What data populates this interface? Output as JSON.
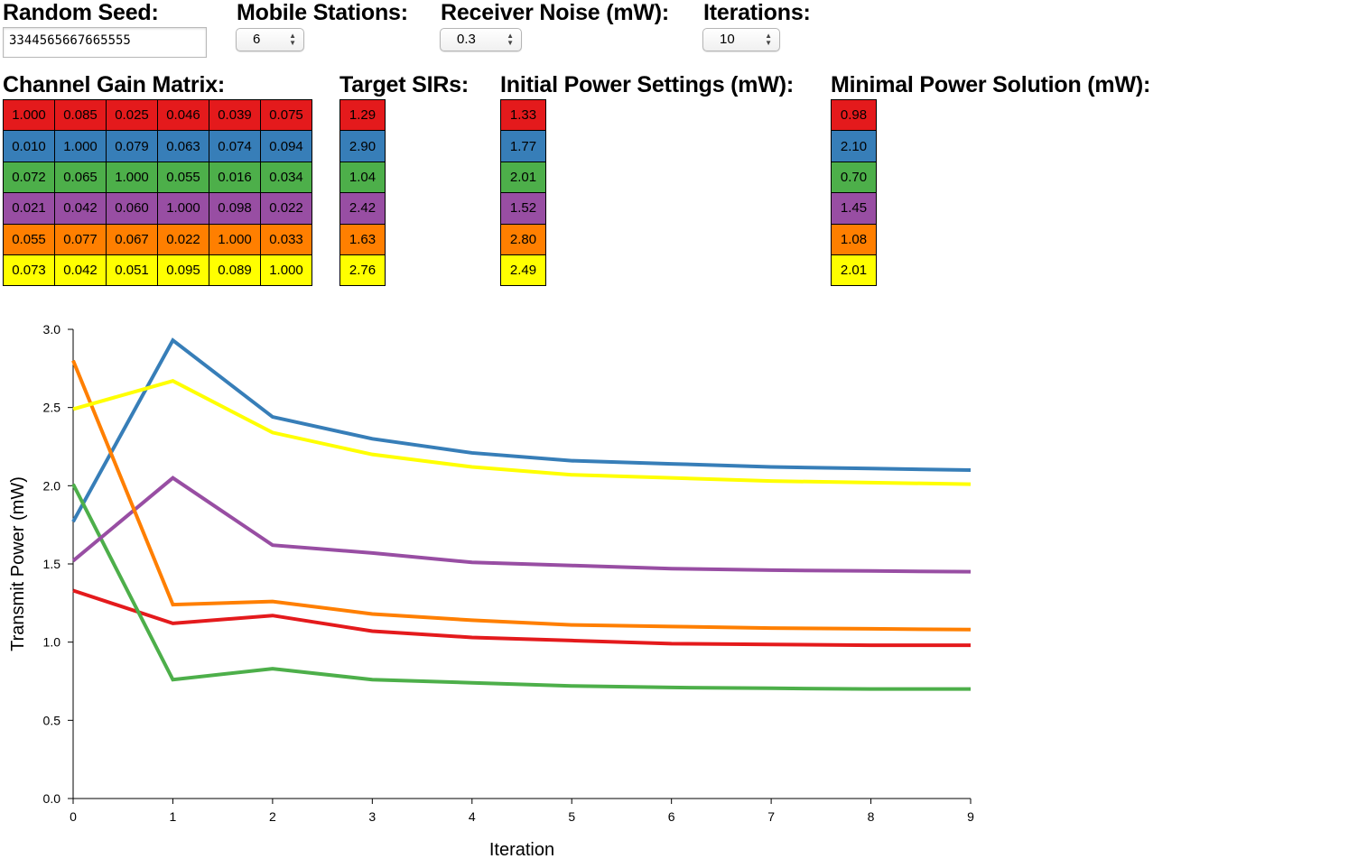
{
  "controls": {
    "seed_label": "Random Seed:",
    "seed_value": "3344565667665555",
    "stations_label": "Mobile Stations:",
    "stations_value": "6",
    "noise_label": "Receiver Noise (mW):",
    "noise_value": "0.3",
    "iterations_label": "Iterations:",
    "iterations_value": "10"
  },
  "tables": {
    "gain_label": "Channel Gain Matrix:",
    "sir_label": "Target SIRs:",
    "initial_label": "Initial Power Settings (mW):",
    "solution_label": "Minimal Power Solution (mW):",
    "gain_matrix": [
      [
        "1.000",
        "0.085",
        "0.025",
        "0.046",
        "0.039",
        "0.075"
      ],
      [
        "0.010",
        "1.000",
        "0.079",
        "0.063",
        "0.074",
        "0.094"
      ],
      [
        "0.072",
        "0.065",
        "1.000",
        "0.055",
        "0.016",
        "0.034"
      ],
      [
        "0.021",
        "0.042",
        "0.060",
        "1.000",
        "0.098",
        "0.022"
      ],
      [
        "0.055",
        "0.077",
        "0.067",
        "0.022",
        "1.000",
        "0.033"
      ],
      [
        "0.073",
        "0.042",
        "0.051",
        "0.095",
        "0.089",
        "1.000"
      ]
    ],
    "target_sirs": [
      "1.29",
      "2.90",
      "1.04",
      "2.42",
      "1.63",
      "2.76"
    ],
    "initial_power": [
      "1.33",
      "1.77",
      "2.01",
      "1.52",
      "2.80",
      "2.49"
    ],
    "minimal_power": [
      "0.98",
      "2.10",
      "0.70",
      "1.45",
      "1.08",
      "2.01"
    ]
  },
  "colors": [
    "#e41a1c",
    "#377eb8",
    "#4daf4a",
    "#984ea3",
    "#ff7f00",
    "#ffff00"
  ],
  "chart_data": {
    "type": "line",
    "xlabel": "Iteration",
    "ylabel": "Transmit Power (mW)",
    "xlim": [
      0,
      9
    ],
    "ylim": [
      0,
      3
    ],
    "x": [
      0,
      1,
      2,
      3,
      4,
      5,
      6,
      7,
      8,
      9
    ],
    "x_ticks": [
      "0",
      "1",
      "2",
      "3",
      "4",
      "5",
      "6",
      "7",
      "8",
      "9"
    ],
    "y_ticks": [
      "0.0",
      "0.5",
      "1.0",
      "1.5",
      "2.0",
      "2.5",
      "3.0"
    ],
    "grid": false,
    "series": [
      {
        "color": "#e41a1c",
        "values": [
          1.33,
          1.12,
          1.17,
          1.07,
          1.03,
          1.01,
          0.99,
          0.985,
          0.98,
          0.98
        ]
      },
      {
        "color": "#377eb8",
        "values": [
          1.77,
          2.93,
          2.44,
          2.3,
          2.21,
          2.16,
          2.14,
          2.12,
          2.11,
          2.1
        ]
      },
      {
        "color": "#4daf4a",
        "values": [
          2.01,
          0.76,
          0.83,
          0.76,
          0.74,
          0.72,
          0.71,
          0.705,
          0.7,
          0.7
        ]
      },
      {
        "color": "#984ea3",
        "values": [
          1.52,
          2.05,
          1.62,
          1.57,
          1.51,
          1.49,
          1.47,
          1.46,
          1.455,
          1.45
        ]
      },
      {
        "color": "#ff7f00",
        "values": [
          2.8,
          1.24,
          1.26,
          1.18,
          1.14,
          1.11,
          1.1,
          1.09,
          1.085,
          1.08
        ]
      },
      {
        "color": "#ffff00",
        "values": [
          2.49,
          2.67,
          2.34,
          2.2,
          2.12,
          2.07,
          2.05,
          2.03,
          2.02,
          2.01
        ]
      }
    ]
  }
}
